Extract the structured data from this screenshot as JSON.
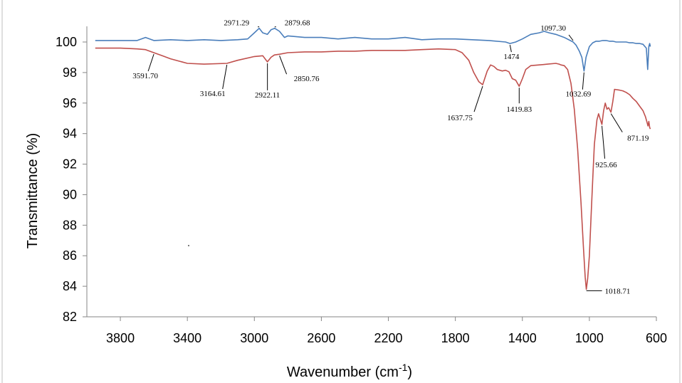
{
  "chart_data": {
    "type": "line",
    "xlabel": "Wavenumber (cm",
    "xlabel_sup": "-1",
    "xlabel_close": ")",
    "ylabel": "Transmittance (%)",
    "xlim": [
      4000,
      600
    ],
    "xlim_reversed": true,
    "ylim": [
      82,
      101
    ],
    "xticks": [
      3800,
      3400,
      3000,
      2600,
      2200,
      1800,
      1400,
      1000,
      600
    ],
    "yticks": [
      82,
      84,
      86,
      88,
      90,
      92,
      94,
      96,
      98,
      100
    ],
    "grid": false,
    "legend": "none",
    "series": [
      {
        "color": "#4A7EBB",
        "x": [
          3950,
          3800,
          3700,
          3650,
          3600,
          3500,
          3400,
          3300,
          3200,
          3100,
          3040,
          3000,
          2971,
          2950,
          2922,
          2900,
          2879,
          2850,
          2820,
          2800,
          2700,
          2600,
          2500,
          2400,
          2300,
          2200,
          2100,
          2000,
          1900,
          1800,
          1700,
          1600,
          1500,
          1474,
          1440,
          1400,
          1350,
          1300,
          1270,
          1240,
          1200,
          1150,
          1097,
          1080,
          1060,
          1045,
          1032,
          1020,
          1000,
          980,
          960,
          940,
          920,
          900,
          880,
          860,
          840,
          820,
          800,
          780,
          760,
          740,
          720,
          700,
          680,
          660,
          652,
          645,
          640,
          636
        ],
        "y": [
          100.1,
          100.1,
          100.1,
          100.3,
          100.1,
          100.15,
          100.1,
          100.15,
          100.1,
          100.15,
          100.2,
          100.6,
          100.9,
          100.6,
          100.5,
          100.8,
          100.9,
          100.7,
          100.3,
          100.4,
          100.3,
          100.3,
          100.2,
          100.3,
          100.2,
          100.2,
          100.3,
          100.15,
          100.2,
          100.2,
          100.15,
          100.1,
          100.0,
          99.9,
          100.0,
          100.2,
          100.5,
          100.6,
          100.7,
          100.6,
          100.5,
          100.3,
          100.0,
          99.8,
          99.4,
          99.0,
          98.1,
          99.0,
          99.7,
          99.95,
          100.05,
          100.05,
          100.1,
          100.1,
          100.05,
          100.05,
          100.0,
          100.0,
          100.0,
          100.0,
          99.95,
          99.95,
          99.9,
          99.9,
          99.85,
          99.6,
          98.2,
          99.7,
          99.9,
          99.7
        ]
      },
      {
        "color": "#C0504D",
        "x": [
          3950,
          3800,
          3700,
          3650,
          3600,
          3550,
          3500,
          3400,
          3300,
          3164,
          3100,
          3000,
          2950,
          2922,
          2900,
          2880,
          2850,
          2800,
          2700,
          2600,
          2500,
          2400,
          2300,
          2200,
          2100,
          2000,
          1900,
          1800,
          1760,
          1720,
          1690,
          1660,
          1637,
          1610,
          1590,
          1570,
          1550,
          1520,
          1500,
          1480,
          1460,
          1440,
          1419,
          1400,
          1380,
          1350,
          1300,
          1250,
          1200,
          1180,
          1170,
          1150,
          1130,
          1110,
          1090,
          1070,
          1050,
          1035,
          1025,
          1018,
          1010,
          1000,
          990,
          980,
          970,
          955,
          945,
          925,
          915,
          905,
          895,
          885,
          871,
          860,
          850,
          820,
          800,
          780,
          760,
          740,
          720,
          700,
          680,
          665,
          655,
          650,
          645,
          640,
          636
        ],
        "y": [
          99.6,
          99.6,
          99.55,
          99.5,
          99.3,
          99.1,
          98.9,
          98.6,
          98.55,
          98.6,
          98.8,
          99.05,
          99.1,
          98.7,
          99.0,
          99.15,
          99.2,
          99.3,
          99.35,
          99.35,
          99.4,
          99.4,
          99.45,
          99.45,
          99.45,
          99.5,
          99.55,
          99.5,
          99.3,
          98.8,
          98.0,
          97.4,
          97.2,
          98.1,
          98.5,
          98.4,
          98.2,
          98.1,
          98.15,
          98.05,
          97.6,
          97.5,
          97.1,
          97.6,
          98.2,
          98.45,
          98.5,
          98.55,
          98.6,
          98.55,
          98.5,
          98.45,
          98.2,
          97.3,
          95.6,
          93.0,
          89.5,
          86.5,
          84.6,
          83.8,
          84.5,
          86.0,
          88.5,
          91.0,
          93.3,
          94.9,
          95.3,
          94.6,
          95.5,
          96.0,
          95.6,
          95.7,
          95.4,
          96.1,
          96.9,
          96.85,
          96.8,
          96.7,
          96.55,
          96.3,
          96.1,
          95.8,
          95.5,
          95.1,
          94.7,
          94.5,
          94.8,
          94.4,
          94.3
        ]
      }
    ],
    "annotations": [
      {
        "text": "2971.29",
        "x": 2971,
        "y": 100.9
      },
      {
        "text": "2879.68",
        "x": 2879,
        "y": 100.9
      },
      {
        "text": "3591.70",
        "x": 3600,
        "y": 99.3
      },
      {
        "text": "3164.61",
        "x": 3164,
        "y": 98.6
      },
      {
        "text": "2922.11",
        "x": 2922,
        "y": 98.7
      },
      {
        "text": "2850.76",
        "x": 2850,
        "y": 99.2
      },
      {
        "text": "1474",
        "x": 1474,
        "y": 99.9
      },
      {
        "text": "1097.30",
        "x": 1097,
        "y": 100.0
      },
      {
        "text": "1637.75",
        "x": 1637,
        "y": 97.2
      },
      {
        "text": "1419.83",
        "x": 1419,
        "y": 97.1
      },
      {
        "text": "1032.69",
        "x": 1032,
        "y": 98.1
      },
      {
        "text": "925.66",
        "x": 925,
        "y": 94.6
      },
      {
        "text": "871.19",
        "x": 871,
        "y": 95.4
      },
      {
        "text": "1018.71",
        "x": 1018,
        "y": 83.8
      }
    ]
  }
}
